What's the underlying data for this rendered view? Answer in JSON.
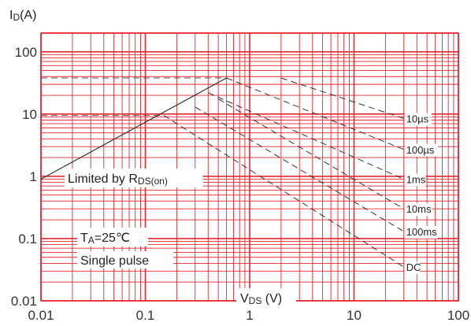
{
  "chart_data": {
    "type": "line",
    "x_scale": "log",
    "y_scale": "log",
    "xlim": [
      0.01,
      100
    ],
    "ylim": [
      0.01,
      200
    ],
    "grid": true,
    "grid_color": "#e8262d",
    "line_color": "#333333",
    "x_ticks": [
      "0.01",
      "0.1",
      "1",
      "10",
      "100"
    ],
    "y_ticks": [
      "0.01",
      "0.1",
      "1",
      "10",
      "100"
    ],
    "y_label": {
      "main": "I",
      "sub": "D",
      "unit": "(A)"
    },
    "x_label": {
      "main": "V",
      "sub": "DS",
      "unit": " (V)"
    },
    "limit_line": {
      "label_main": "Limited by R",
      "label_sub": "DS(on)",
      "x": [
        0.01,
        0.6
      ],
      "y": [
        0.9,
        38
      ]
    },
    "reference_lines": [
      {
        "y": 38,
        "x": [
          0.01,
          0.6
        ]
      },
      {
        "y": 9.5,
        "x": [
          0.01,
          0.15
        ]
      }
    ],
    "series": [
      {
        "name": "10µs",
        "x": [
          2,
          30
        ],
        "y": [
          38,
          8.5
        ]
      },
      {
        "name": "100µs",
        "x": [
          0.6,
          30
        ],
        "y": [
          38,
          2.7
        ]
      },
      {
        "name": "1ms",
        "x": [
          0.4,
          30
        ],
        "y": [
          22,
          0.9
        ]
      },
      {
        "name": "10ms",
        "x": [
          0.5,
          30
        ],
        "y": [
          17.5,
          0.3
        ]
      },
      {
        "name": "100ms",
        "x": [
          0.3,
          30
        ],
        "y": [
          13,
          0.13
        ]
      },
      {
        "name": "DC",
        "x": [
          0.15,
          30
        ],
        "y": [
          9.5,
          0.035
        ]
      }
    ],
    "annotations": {
      "temp_main": "T",
      "temp_sub": "A",
      "temp_value": "=25℃",
      "pulse": "Single pulse"
    }
  }
}
